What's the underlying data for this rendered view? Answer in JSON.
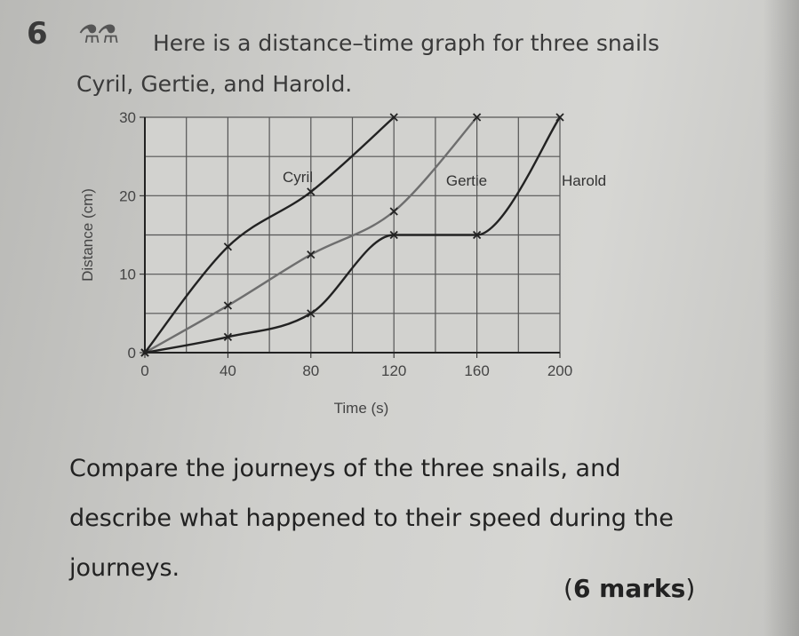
{
  "question": {
    "number": "6",
    "icon": "flask-icons",
    "intro": "Here is a distance–time graph for three snails Cyril, Gertie, and Harold.",
    "prompt": "Compare the journeys of the three snails, and describe what happened to their speed during the journeys.",
    "marks_open": "(",
    "marks": "6 marks",
    "marks_close": ")"
  },
  "chart_data": {
    "type": "line",
    "title": "",
    "xlabel": "Time (s)",
    "ylabel": "Distance (cm)",
    "xlim": [
      0,
      200
    ],
    "ylim": [
      0,
      30
    ],
    "xticks": [
      "0",
      "40",
      "80",
      "120",
      "160",
      "200"
    ],
    "yticks": [
      "0",
      "10",
      "20",
      "30"
    ],
    "grid": true,
    "grid_x_step": 20,
    "grid_y_step": 5,
    "markers": "x",
    "series": [
      {
        "name": "Cyril",
        "color": "#222222",
        "x": [
          0,
          40,
          80,
          120
        ],
        "y": [
          0,
          13.5,
          20.5,
          30
        ]
      },
      {
        "name": "Gertie",
        "color": "#6e6e6e",
        "x": [
          0,
          40,
          80,
          120,
          160
        ],
        "y": [
          0,
          6,
          12.5,
          18,
          30
        ]
      },
      {
        "name": "Harold",
        "color": "#222222",
        "x": [
          0,
          40,
          80,
          120,
          160,
          200
        ],
        "y": [
          0,
          2,
          5,
          15,
          15,
          30
        ]
      }
    ]
  }
}
